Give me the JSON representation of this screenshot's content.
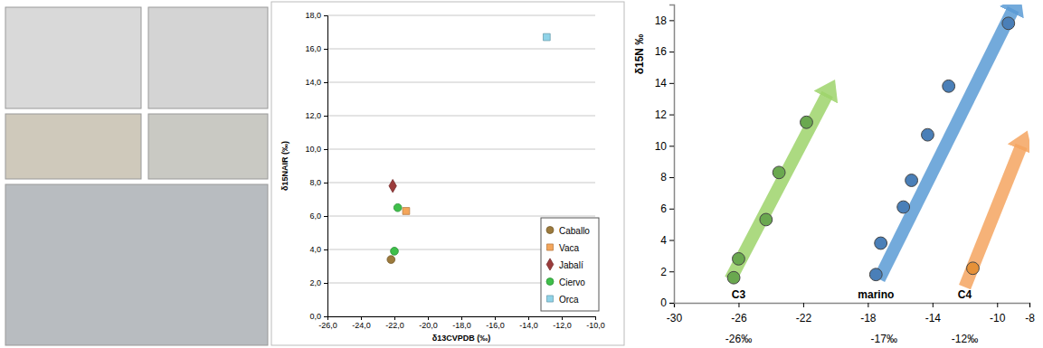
{
  "chart_data": [
    {
      "type": "scatter",
      "x_label": "δ13CVPDB (‰)",
      "y_label": "δ15NAIR (‰)",
      "xlim": [
        -26,
        -10
      ],
      "xticks": [
        {
          "value": -26,
          "label": "-26,0"
        },
        {
          "value": -24,
          "label": "-24,0"
        },
        {
          "value": -22,
          "label": "-22,0"
        },
        {
          "value": -20,
          "label": "-20,0"
        },
        {
          "value": -18,
          "label": "-18,0"
        },
        {
          "value": -16,
          "label": "-16,0"
        },
        {
          "value": -14,
          "label": "-14,0"
        },
        {
          "value": -12,
          "label": "-12,0"
        },
        {
          "value": -10,
          "label": "-10,0"
        }
      ],
      "ylim": [
        0,
        18
      ],
      "yticks": [
        {
          "value": 0,
          "label": "0,0"
        },
        {
          "value": 2,
          "label": "2,0"
        },
        {
          "value": 4,
          "label": "4,0"
        },
        {
          "value": 6,
          "label": "6,0"
        },
        {
          "value": 8,
          "label": "8,0"
        },
        {
          "value": 10,
          "label": "10,0"
        },
        {
          "value": 12,
          "label": "12,0"
        },
        {
          "value": 14,
          "label": "14,0"
        },
        {
          "value": 16,
          "label": "16,0"
        },
        {
          "value": 18,
          "label": "18,0"
        }
      ],
      "grid": true,
      "legend": "bottom-right",
      "series": [
        {
          "name": "Caballo",
          "color": "#9c7a3c",
          "marker": "circle",
          "x": [
            -22.2
          ],
          "values": [
            3.4
          ]
        },
        {
          "name": "Vaca",
          "color": "#f4a55a",
          "marker": "square",
          "x": [
            -21.3
          ],
          "values": [
            6.3
          ]
        },
        {
          "name": "Jabalí",
          "color": "#9b3b3b",
          "marker": "diamond",
          "x": [
            -22.1
          ],
          "values": [
            7.8
          ]
        },
        {
          "name": "Ciervo",
          "color": "#3fbf4a",
          "marker": "circle",
          "x": [
            -21.8,
            -22.0
          ],
          "values": [
            6.5,
            3.9
          ]
        },
        {
          "name": "Orca",
          "color": "#8fd3e8",
          "marker": "square",
          "x": [
            -12.9
          ],
          "values": [
            16.7
          ]
        }
      ]
    },
    {
      "type": "scatter",
      "y_label": "δ15N ‰",
      "xlim": [
        -30,
        -8
      ],
      "xticks": [
        -30,
        -26,
        -22,
        -18,
        -14,
        -10,
        -8
      ],
      "ylim": [
        0,
        19
      ],
      "yticks": [
        0,
        2,
        4,
        6,
        8,
        10,
        12,
        14,
        16,
        18
      ],
      "grid": false,
      "region_labels": [
        {
          "text": "C3",
          "x": -26
        },
        {
          "text": "marino",
          "x": -17.5
        },
        {
          "text": "C4",
          "x": -12
        }
      ],
      "reference_labels": [
        {
          "value": -26,
          "label": "-26‰"
        },
        {
          "value": -17,
          "label": "-17‰"
        },
        {
          "value": -12,
          "label": "-12‰"
        }
      ],
      "series": [
        {
          "type": "arrow",
          "color": "#9ed36b",
          "x": [
            -26.5,
            -20.5
          ],
          "values": [
            1.5,
            13.3
          ]
        },
        {
          "type": "arrow",
          "color": "#5b9bd5",
          "x": [
            -17.3,
            -9
          ],
          "values": [
            1.5,
            18.7
          ]
        },
        {
          "type": "arrow",
          "color": "#f4a460",
          "x": [
            -12,
            -8.5
          ],
          "values": [
            1,
            10
          ]
        },
        {
          "type": "scatter",
          "color": "#6aa84f",
          "marker": "circle",
          "x": [
            -26,
            -26.3,
            -24.3,
            -23.5,
            -21.8
          ],
          "values": [
            2.8,
            1.6,
            5.3,
            8.3,
            11.5
          ]
        },
        {
          "type": "scatter",
          "color": "#4a7fb8",
          "marker": "circle",
          "x": [
            -17.5,
            -17.2,
            -15.8,
            -15.3,
            -14.3,
            -13,
            -9.3
          ],
          "values": [
            1.8,
            3.8,
            6.1,
            7.8,
            10.7,
            13.8,
            17.8
          ]
        },
        {
          "type": "scatter",
          "color": "#e69138",
          "marker": "circle",
          "x": [
            -11.5
          ],
          "values": [
            2.2
          ]
        }
      ]
    }
  ]
}
